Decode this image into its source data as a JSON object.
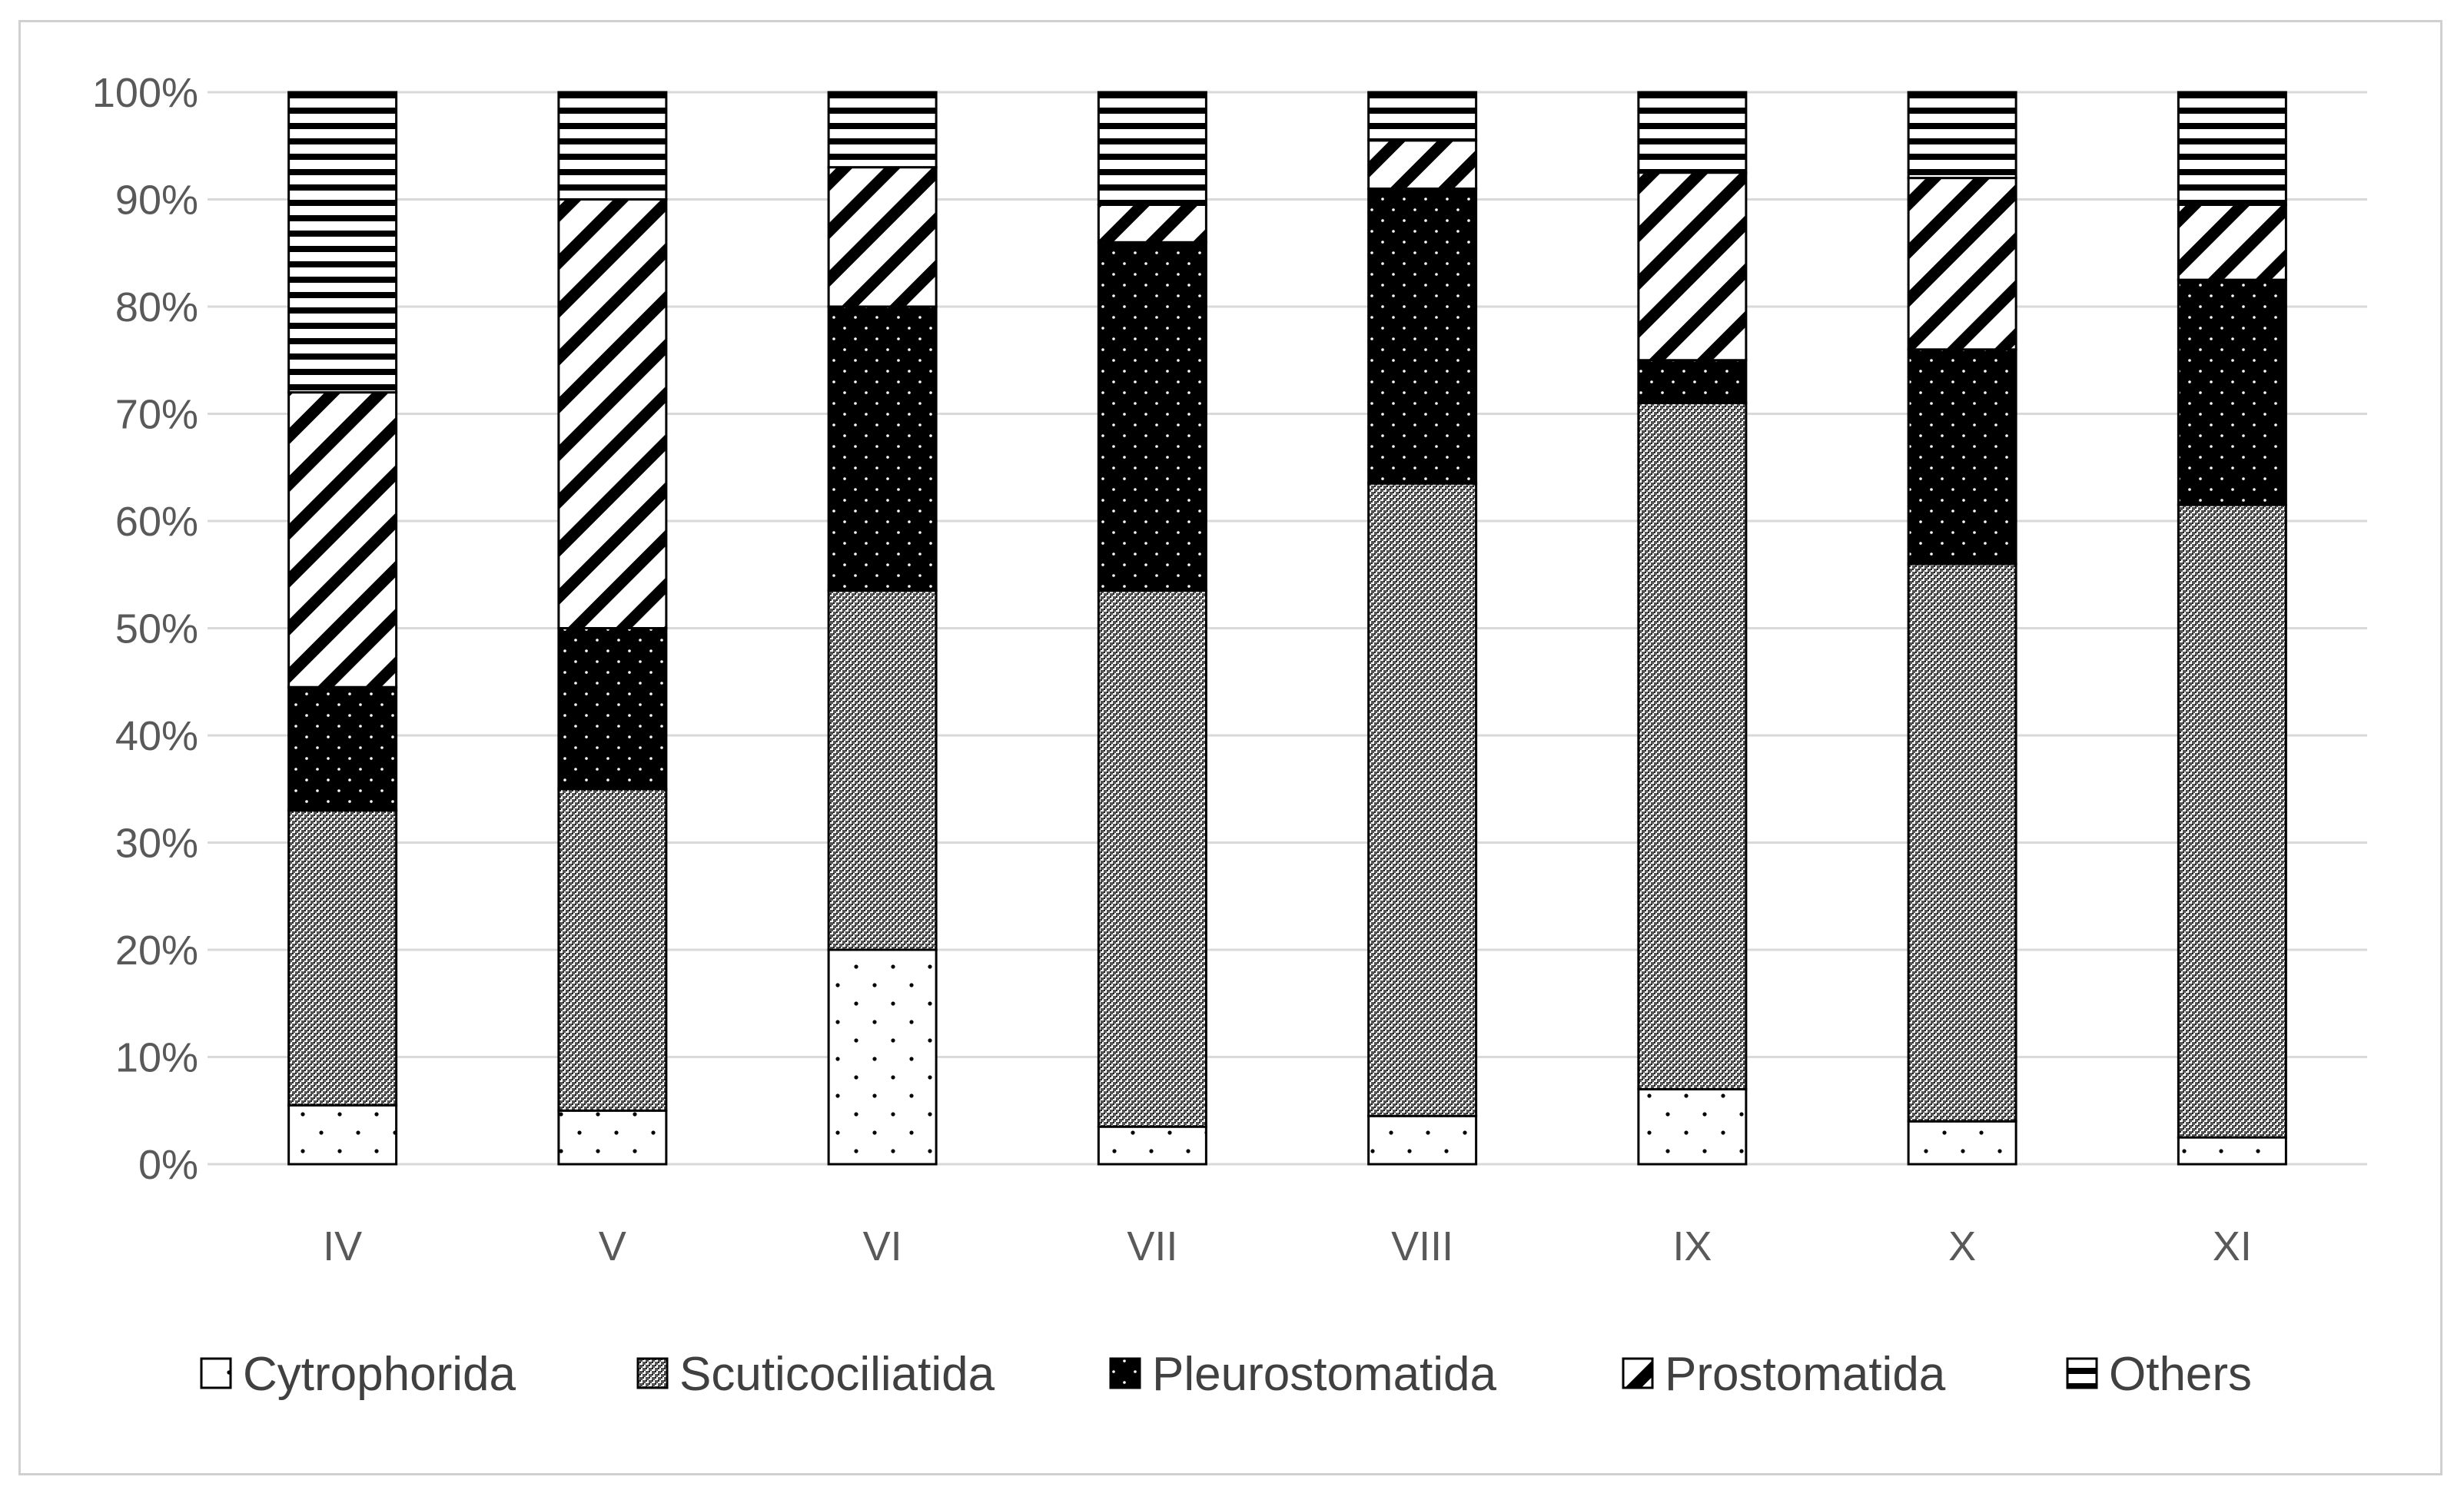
{
  "chart_data": {
    "type": "bar",
    "stacked": true,
    "percent": true,
    "title": "",
    "xlabel": "",
    "ylabel": "",
    "ylim": [
      0,
      100
    ],
    "y_ticks": [
      "0%",
      "10%",
      "20%",
      "30%",
      "40%",
      "50%",
      "60%",
      "70%",
      "80%",
      "90%",
      "100%"
    ],
    "grid": true,
    "legend_position": "bottom",
    "categories": [
      "IV",
      "V",
      "VI",
      "VII",
      "VIII",
      "IX",
      "X",
      "XI"
    ],
    "series": [
      {
        "name": "Cytrophorida",
        "pattern": "dots-sparse",
        "values": [
          5.5,
          5,
          20,
          3.5,
          4.5,
          7,
          4,
          2.5
        ]
      },
      {
        "name": "Scuticociliatida",
        "pattern": "crosshatch",
        "values": [
          27.5,
          30,
          33.5,
          50,
          59,
          64,
          52,
          59
        ]
      },
      {
        "name": "Pleurostomatida",
        "pattern": "black-dots",
        "values": [
          11.5,
          15,
          26.5,
          32.5,
          27.5,
          4,
          20,
          21
        ]
      },
      {
        "name": "Prostomatida",
        "pattern": "diagonal",
        "values": [
          27.5,
          40,
          13,
          3.5,
          4.5,
          17.5,
          16,
          7
        ]
      },
      {
        "name": "Others",
        "pattern": "horizontal",
        "values": [
          28,
          10,
          7,
          10.5,
          4.5,
          7.5,
          8,
          10.5
        ]
      }
    ],
    "colors": {
      "grid": "#d9d9d9",
      "bar_edge": "#000000",
      "frame": "#d0d0d0"
    }
  }
}
